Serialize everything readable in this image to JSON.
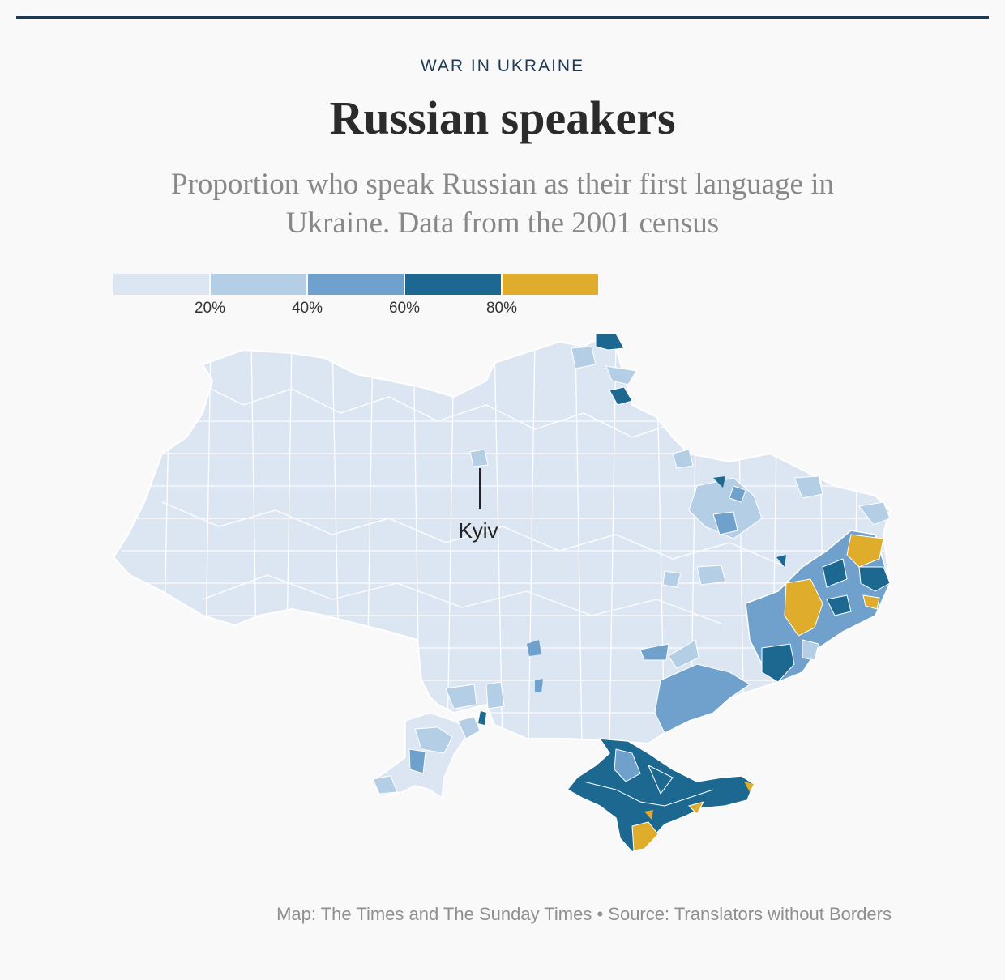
{
  "kicker": "WAR IN UKRAINE",
  "title": "Russian speakers",
  "subtitle": "Proportion who speak Russian as their first language in Ukraine. Data from the 2001 census",
  "legend": {
    "bins": [
      {
        "range": [
          0,
          20
        ],
        "color": "#dce6f3"
      },
      {
        "range": [
          20,
          40
        ],
        "color": "#b3cee5"
      },
      {
        "range": [
          40,
          60
        ],
        "color": "#6fa1cc"
      },
      {
        "range": [
          60,
          80
        ],
        "color": "#1c6890"
      },
      {
        "range": [
          80,
          100
        ],
        "color": "#e0ac2b"
      }
    ],
    "ticks": [
      "20%",
      "40%",
      "60%",
      "80%"
    ]
  },
  "map": {
    "city_label": "Kyiv",
    "base_color": "#dce6f3",
    "border_color": "#ffffff"
  },
  "source": "Map: The Times and The Sunday Times • Source: Translators without Borders"
}
